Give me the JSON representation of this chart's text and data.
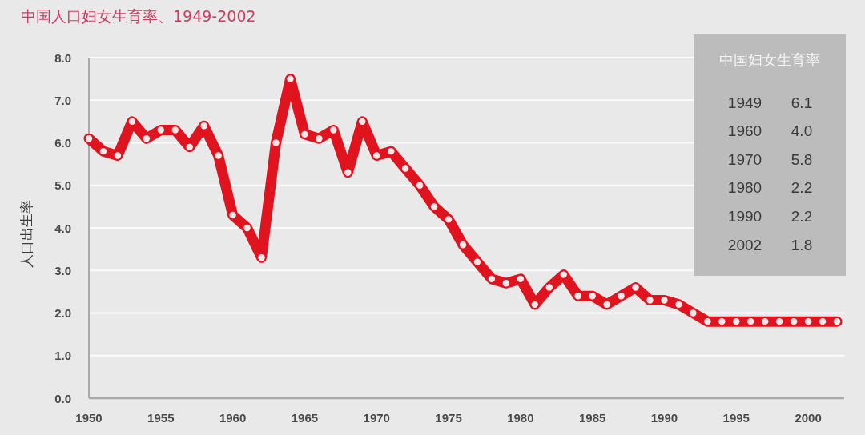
{
  "chart_data": {
    "type": "line",
    "title": "中国人口妇女生育率、1949-2002",
    "ylabel": "人口出生率",
    "x": [
      1950,
      1951,
      1952,
      1953,
      1954,
      1955,
      1956,
      1957,
      1958,
      1959,
      1960,
      1961,
      1962,
      1963,
      1964,
      1965,
      1966,
      1967,
      1968,
      1969,
      1970,
      1971,
      1972,
      1973,
      1974,
      1975,
      1976,
      1977,
      1978,
      1979,
      1980,
      1981,
      1982,
      1983,
      1984,
      1985,
      1986,
      1987,
      1988,
      1989,
      1990,
      1991,
      1992,
      1993,
      1994,
      1995,
      1996,
      1997,
      1998,
      1999,
      2000,
      2001,
      2002
    ],
    "series": [
      {
        "color": "#e0141f",
        "values": [
          6.1,
          5.8,
          5.7,
          6.5,
          6.1,
          6.3,
          6.3,
          5.9,
          6.4,
          5.7,
          4.3,
          4.0,
          3.3,
          6.0,
          7.5,
          6.2,
          6.1,
          6.3,
          5.3,
          6.5,
          5.7,
          5.8,
          5.4,
          5.0,
          4.5,
          4.2,
          3.6,
          3.2,
          2.8,
          2.7,
          2.8,
          2.2,
          2.6,
          2.9,
          2.4,
          2.4,
          2.2,
          2.4,
          2.6,
          2.3,
          2.3,
          2.2,
          2.0,
          1.8,
          1.8,
          1.8,
          1.8,
          1.8,
          1.8,
          1.8,
          1.8,
          1.8,
          1.8
        ]
      }
    ],
    "xlim": [
      1950,
      2002.5
    ],
    "ylim": [
      0,
      8
    ],
    "xticks": [
      1950,
      1955,
      1960,
      1965,
      1970,
      1975,
      1980,
      1985,
      1990,
      1995,
      2000
    ],
    "yticks": [
      {
        "value": 0,
        "label": "0.0"
      },
      {
        "value": 1,
        "label": "1.0"
      },
      {
        "value": 2,
        "label": "2.0"
      },
      {
        "value": 3,
        "label": "3.0"
      },
      {
        "value": 4,
        "label": "4.0"
      },
      {
        "value": 5,
        "label": "5.0"
      },
      {
        "value": 6,
        "label": "6.0"
      },
      {
        "value": 7,
        "label": "7.0"
      },
      {
        "value": 8,
        "label": "8.0"
      }
    ],
    "grid": "y",
    "marker": "circle",
    "line_style": "solid",
    "annotations": [
      "中国妇女生育率",
      "1949",
      "6.1",
      "1960",
      "4.0",
      "1970",
      "5.8",
      "1980",
      "2.2",
      "1990",
      "2.2",
      "2002",
      "1.8"
    ]
  }
}
